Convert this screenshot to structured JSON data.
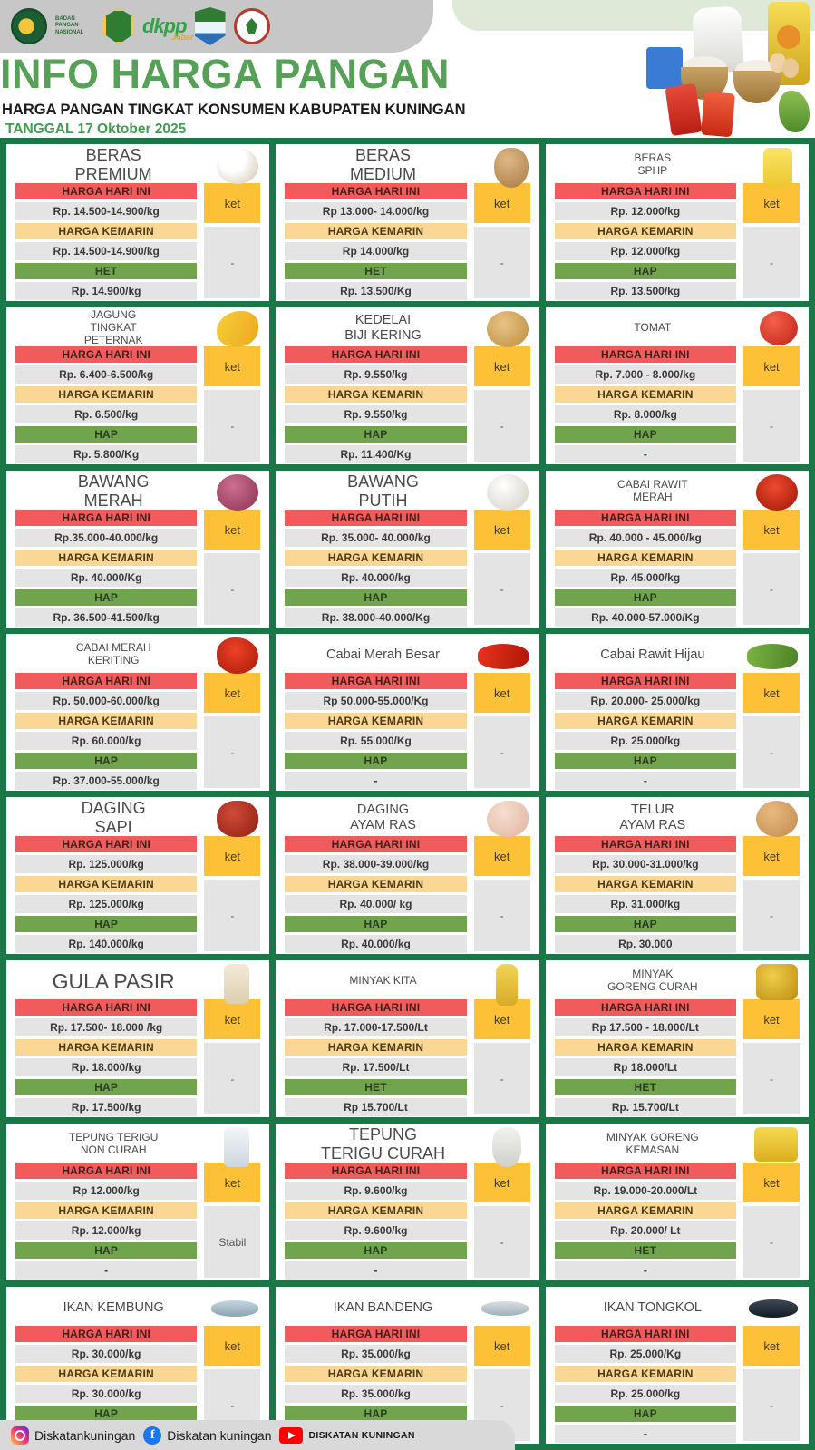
{
  "header": {
    "title": "INFO HARGA PANGAN",
    "subtitle": "HARGA PANGAN TINGKAT KONSUMEN  KABUPATEN KUNINGAN",
    "date_label": "TANGGAL 17 Oktober 2025",
    "logos": [
      {
        "name": "badan-pangan-nasional",
        "label": "BADAN PANGAN NASIONAL"
      },
      {
        "name": "jawa-barat"
      },
      {
        "name": "dkpp-jabar",
        "label": "dkpp",
        "sublabel": "Jabar"
      },
      {
        "name": "kabupaten-kuningan"
      },
      {
        "name": "pertanian-emblem"
      }
    ]
  },
  "labels": {
    "today": "HARGA HARI INI",
    "yesterday": "HARGA KEMARIN",
    "ket": "ket"
  },
  "colors": {
    "accent_red": "#f25b5b",
    "accent_orange": "#fad795",
    "accent_green": "#70a54e",
    "accent_yellow": "#fcc136",
    "grid_green": "#1b7648",
    "value_gray": "#e4e4e4",
    "title_green": "#56a058"
  },
  "cards": [
    {
      "title_lines": [
        "BERAS",
        "PREMIUM"
      ],
      "title_size": "lg",
      "image": "rice-premium",
      "today": "Rp. 14.500-14.900/kg",
      "yesterday": "Rp. 14.500-14.900/kg",
      "ref_label": "HET",
      "ref_price": "Rp. 14.900/kg",
      "ket": "-"
    },
    {
      "title_lines": [
        "BERAS",
        "MEDIUM"
      ],
      "title_size": "lg",
      "image": "rice-medium",
      "today": "Rp 13.000- 14.000/kg",
      "yesterday": "Rp 14.000/kg",
      "ref_label": "HET",
      "ref_price": "Rp. 13.500/Kg",
      "ket": "-"
    },
    {
      "title_lines": [
        "BERAS",
        "SPHP"
      ],
      "title_size": "sm",
      "image": "rice-sphp",
      "today": "Rp. 12.000/kg",
      "yesterday": "Rp. 12.000/kg",
      "ref_label": "HAP",
      "ref_price": "Rp. 13.500/kg",
      "ket": "-"
    },
    {
      "title_lines": [
        "JAGUNG",
        "TINGKAT",
        "PETERNAK"
      ],
      "title_size": "sm",
      "image": "corn",
      "today": "Rp. 6.400-6.500/kg",
      "yesterday": "Rp. 6.500/kg",
      "ref_label": "HAP",
      "ref_price": "Rp. 5.800/Kg",
      "ket": "-"
    },
    {
      "title_lines": [
        "KEDELAI",
        "BIJI KERING"
      ],
      "title_size": "md",
      "image": "soybean",
      "today": "Rp. 9.550/kg",
      "yesterday": "Rp. 9.550/kg",
      "ref_label": "HAP",
      "ref_price": "Rp. 11.400/Kg",
      "ket": "-"
    },
    {
      "title_lines": [
        "TOMAT"
      ],
      "title_size": "sm",
      "image": "tomato",
      "today": "Rp. 7.000 - 8.000/kg",
      "yesterday": "Rp. 8.000/kg",
      "ref_label": "HAP",
      "ref_price": "-",
      "ket": "-"
    },
    {
      "title_lines": [
        "BAWANG",
        "MERAH"
      ],
      "title_size": "lg",
      "image": "shallot",
      "today": "Rp.35.000-40.000/kg",
      "yesterday": "Rp. 40.000/Kg",
      "ref_label": "HAP",
      "ref_price": "Rp. 36.500-41.500/kg",
      "ket": "-"
    },
    {
      "title_lines": [
        "BAWANG",
        "PUTIH"
      ],
      "title_size": "lg",
      "image": "garlic",
      "today": "Rp. 35.000- 40.000/kg",
      "yesterday": "Rp. 40.000/kg",
      "ref_label": "HAP",
      "ref_price": "Rp. 38.000-40.000/Kg",
      "ket": "-"
    },
    {
      "title_lines": [
        "CABAI RAWIT",
        "MERAH"
      ],
      "title_size": "sm",
      "image": "chili-red-basket",
      "today": "Rp. 40.000 - 45.000/kg",
      "yesterday": "Rp. 45.000/kg",
      "ref_label": "HAP",
      "ref_price": "Rp. 40.000-57.000/Kg",
      "ket": "-"
    },
    {
      "title_lines": [
        "CABAI MERAH",
        "KERITING"
      ],
      "title_size": "sm",
      "image": "chili-curly",
      "today": "Rp. 50.000-60.000/kg",
      "yesterday": "Rp. 60.000/kg",
      "ref_label": "HAP",
      "ref_price": "Rp. 37.000-55.000/kg",
      "ket": "-"
    },
    {
      "title_lines": [
        "Cabai Merah Besar"
      ],
      "title_size": "md",
      "image": "chili-big",
      "today": "Rp 50.000-55.000/Kg",
      "yesterday": "Rp. 55.000/Kg",
      "ref_label": "HAP",
      "ref_price": "-",
      "ket": "-"
    },
    {
      "title_lines": [
        "Cabai Rawit Hijau"
      ],
      "title_size": "md",
      "image": "chili-green",
      "today": "Rp. 20.000- 25.000/kg",
      "yesterday": "Rp. 25.000/kg",
      "ref_label": "HAP",
      "ref_price": "-",
      "ket": "-"
    },
    {
      "title_lines": [
        "DAGING",
        "SAPI"
      ],
      "title_size": "lg",
      "image": "beef",
      "today": "Rp. 125.000/kg",
      "yesterday": "Rp. 125.000/kg",
      "ref_label": "HAP",
      "ref_price": "Rp. 140.000/kg",
      "ket": "-"
    },
    {
      "title_lines": [
        "DAGING",
        "AYAM RAS"
      ],
      "title_size": "md",
      "image": "chicken",
      "today": "Rp. 38.000-39.000/kg",
      "yesterday": "Rp. 40.000/ kg",
      "ref_label": "HAP",
      "ref_price": "Rp. 40.000/kg",
      "ket": "-"
    },
    {
      "title_lines": [
        "TELUR",
        "AYAM RAS"
      ],
      "title_size": "md",
      "image": "eggs",
      "today": "Rp. 30.000-31.000/kg",
      "yesterday": "Rp. 31.000/kg",
      "ref_label": "HAP",
      "ref_price": "Rp. 30.000",
      "ket": "-"
    },
    {
      "title_lines": [
        "GULA PASIR"
      ],
      "title_size": "xl",
      "image": "sugar",
      "today": "Rp. 17.500- 18.000 /kg",
      "yesterday": "Rp. 18.000/kg",
      "ref_label": "HAP",
      "ref_price": "Rp. 17.500/kg",
      "ket": "-"
    },
    {
      "title_lines": [
        "MINYAK KITA"
      ],
      "title_size": "sm",
      "image": "oil-bottle",
      "today": "Rp. 17.000-17.500/Lt",
      "yesterday": "Rp. 17.500/Lt",
      "ref_label": "HET",
      "ref_price": "Rp 15.700/Lt",
      "ket": "-"
    },
    {
      "title_lines": [
        "MINYAK",
        "GORENG CURAH"
      ],
      "title_size": "sm",
      "image": "oil-curah",
      "today": "Rp 17.500 - 18.000/Lt",
      "yesterday": "Rp 18.000/Lt",
      "ref_label": "HET",
      "ref_price": "Rp. 15.700/Lt",
      "ket": "-"
    },
    {
      "title_lines": [
        "TEPUNG TERIGU",
        "NON CURAH"
      ],
      "title_size": "sm",
      "image": "flour-pack",
      "today": "Rp 12.000/kg",
      "yesterday": "Rp. 12.000/kg",
      "ref_label": "HAP",
      "ref_price": "-",
      "ket": "Stabil"
    },
    {
      "title_lines": [
        "TEPUNG",
        "TERIGU CURAH"
      ],
      "title_size": "lg",
      "image": "flour-sack",
      "today": "Rp. 9.600/kg",
      "yesterday": "Rp. 9.600/kg",
      "ref_label": "HAP",
      "ref_price": "-",
      "ket": "-"
    },
    {
      "title_lines": [
        "MINYAK GORENG",
        "KEMASAN"
      ],
      "title_size": "sm",
      "image": "oil-kemasan",
      "today": "Rp. 19.000-20.000/Lt",
      "yesterday": "Rp. 20.000/ Lt",
      "ref_label": "HET",
      "ref_price": "-",
      "ket": "-"
    },
    {
      "title_lines": [
        "IKAN KEMBUNG"
      ],
      "title_size": "md",
      "image": "fish-kembung",
      "today": "Rp. 30.000/kg",
      "yesterday": "Rp. 30.000/kg",
      "ref_label": "HAP",
      "ref_price": "-",
      "ket": "-"
    },
    {
      "title_lines": [
        "IKAN BANDENG"
      ],
      "title_size": "md",
      "image": "fish-bandeng",
      "today": "Rp. 35.000/kg",
      "yesterday": "Rp. 35.000/kg",
      "ref_label": "HAP",
      "ref_price": "-",
      "ket": "-"
    },
    {
      "title_lines": [
        "IKAN TONGKOL"
      ],
      "title_size": "md",
      "image": "fish-tongkol",
      "today": "Rp. 25.000/Kg",
      "yesterday": "Rp. 25.000/kg",
      "ref_label": "HAP",
      "ref_price": "-",
      "ket": "-"
    }
  ],
  "footer": {
    "social": [
      {
        "platform": "instagram",
        "handle": "Diskatankuningan"
      },
      {
        "platform": "facebook",
        "handle": "Diskatan kuningan"
      },
      {
        "platform": "youtube",
        "handle": "DISKATAN KUNINGAN"
      }
    ]
  }
}
